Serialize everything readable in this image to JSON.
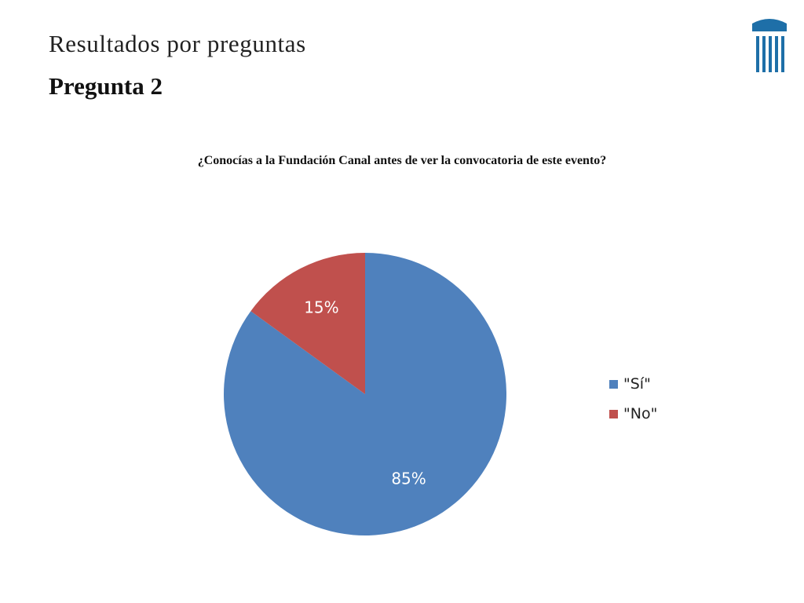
{
  "slide": {
    "title": "Resultados por preguntas",
    "subtitle": "Pregunta 2"
  },
  "logo": {
    "icon": "institution-columns-icon",
    "color": "#1e6fa8"
  },
  "chart_data": {
    "type": "pie",
    "title": "¿Conocías a la Fundación Canal antes de ver la convocatoria de este evento?",
    "slices": [
      {
        "label": "\"Sí\"",
        "value": 85,
        "data_label": "85%",
        "color": "#4f81bd"
      },
      {
        "label": "\"No\"",
        "value": 15,
        "data_label": "15%",
        "color": "#c0504d"
      }
    ],
    "legend_position": "right"
  }
}
